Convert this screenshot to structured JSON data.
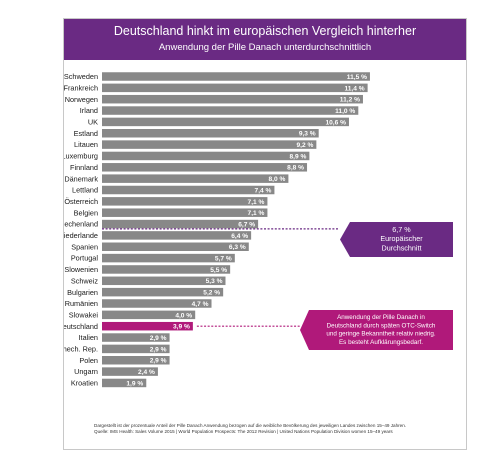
{
  "header": {
    "title": "Deutschland hinkt im europäischen Vergleich hinterher",
    "subtitle": "Anwendung der Pille Danach unterdurchschnittlich"
  },
  "colors": {
    "header_bg": "#6a2a83",
    "bar": "#888888",
    "highlight_bar": "#b0197a",
    "avg_callout": "#6a2a83",
    "de_callout": "#b0197a",
    "frame_border": "#c8c8c8"
  },
  "chart_data": {
    "type": "bar",
    "orientation": "horizontal",
    "categories": [
      "Schweden",
      "Frankreich",
      "Norwegen",
      "Irland",
      "UK",
      "Estland",
      "Litauen",
      "Luxemburg",
      "Finnland",
      "Dänemark",
      "Lettland",
      "Österreich",
      "Belgien",
      "Griechenland",
      "Niederlande",
      "Spanien",
      "Portugal",
      "Slowenien",
      "Schweiz",
      "Bulgarien",
      "Rumänien",
      "Slowakei",
      "Deutschland",
      "Italien",
      "Tschech. Rep.",
      "Polen",
      "Ungarn",
      "Kroatien"
    ],
    "values": [
      11.5,
      11.4,
      11.2,
      11.0,
      10.6,
      9.3,
      9.2,
      8.9,
      8.8,
      8.0,
      7.4,
      7.1,
      7.1,
      6.7,
      6.4,
      6.3,
      5.7,
      5.5,
      5.3,
      5.2,
      4.7,
      4.0,
      3.9,
      2.9,
      2.9,
      2.9,
      2.4,
      1.9
    ],
    "value_labels": [
      "11,5 %",
      "11,4 %",
      "11,2 %",
      "11,0 %",
      "10,6 %",
      "9,3 %",
      "9,2 %",
      "8,9 %",
      "8,8 %",
      "8,0 %",
      "7,4 %",
      "7,1 %",
      "7,1 %",
      "6,7 %",
      "6,4 %",
      "6,3 %",
      "5,7 %",
      "5,5 %",
      "5,3 %",
      "5,2 %",
      "4,7 %",
      "4,0 %",
      "3,9 %",
      "2,9 %",
      "2,9 %",
      "2,9 %",
      "2,4 %",
      "1,9 %"
    ],
    "highlight": "Deutschland",
    "average": 6.7,
    "average_label_lines": [
      "6,7 %",
      "Europäischer",
      "Durchschnitt"
    ],
    "germany_note_lines": [
      "Anwendung der Pille Danach in",
      "Deutschland durch späten OTC-Switch",
      "und geringe Bekanntheit relativ niedrig.",
      "Es besteht Aufklärungsbedarf."
    ],
    "xlim": [
      0,
      12
    ],
    "unit": "%"
  },
  "footnote": {
    "line1": "Dargestellt ist der prozentuale Anteil der Pille Danach Anwendung bezogen auf die weibliche Bevölkerung des jeweiligen Landes zwischen 15–49 Jahren.",
    "line2": "Quelle: IMS Health: Sales Volume 2015 | World Population Prospects: The 2012 Revision | United Nations Population Division women 15–49 years"
  }
}
